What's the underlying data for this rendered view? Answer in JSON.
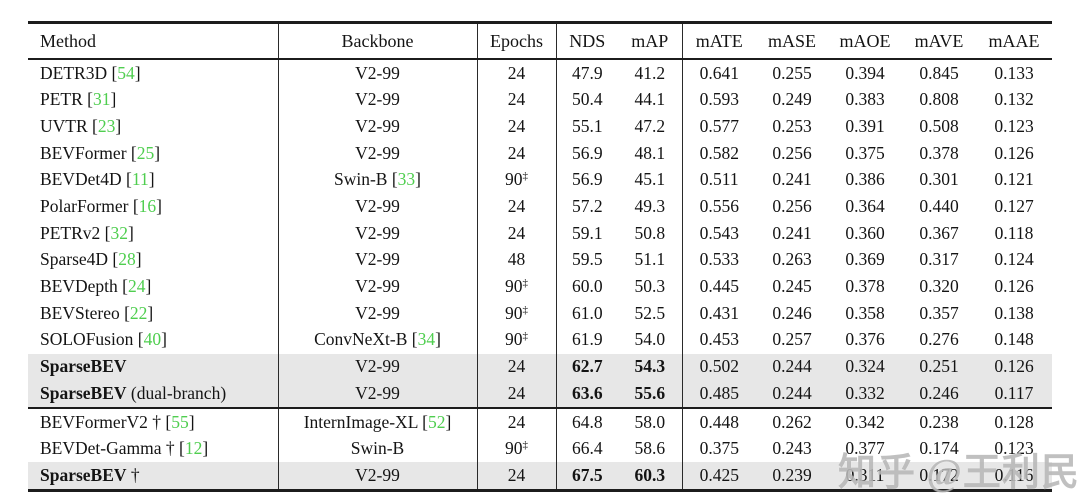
{
  "watermark": "知乎 @王利民",
  "colors": {
    "citation_green": "#4fce4f",
    "highlight_gray": "#e7e7e7",
    "rule_black": "#1c1c1c"
  },
  "table": {
    "columns": [
      "Method",
      "Backbone",
      "Epochs",
      "NDS",
      "mAP",
      "mATE",
      "mASE",
      "mAOE",
      "mAVE",
      "mAAE"
    ],
    "groups": [
      {
        "rows": [
          {
            "name": "DETR3D",
            "bold": false,
            "suffix": "",
            "dagger": false,
            "cite": "54",
            "backbone": "V2-99",
            "backbone_cite": "",
            "epochs": "24",
            "ddagger": false,
            "metrics": [
              "47.9",
              "41.2",
              "0.641",
              "0.255",
              "0.394",
              "0.845",
              "0.133"
            ],
            "bold_metrics": false,
            "highlight": false
          },
          {
            "name": "PETR",
            "bold": false,
            "suffix": "",
            "dagger": false,
            "cite": "31",
            "backbone": "V2-99",
            "backbone_cite": "",
            "epochs": "24",
            "ddagger": false,
            "metrics": [
              "50.4",
              "44.1",
              "0.593",
              "0.249",
              "0.383",
              "0.808",
              "0.132"
            ],
            "bold_metrics": false,
            "highlight": false
          },
          {
            "name": "UVTR",
            "bold": false,
            "suffix": "",
            "dagger": false,
            "cite": "23",
            "backbone": "V2-99",
            "backbone_cite": "",
            "epochs": "24",
            "ddagger": false,
            "metrics": [
              "55.1",
              "47.2",
              "0.577",
              "0.253",
              "0.391",
              "0.508",
              "0.123"
            ],
            "bold_metrics": false,
            "highlight": false
          },
          {
            "name": "BEVFormer",
            "bold": false,
            "suffix": "",
            "dagger": false,
            "cite": "25",
            "backbone": "V2-99",
            "backbone_cite": "",
            "epochs": "24",
            "ddagger": false,
            "metrics": [
              "56.9",
              "48.1",
              "0.582",
              "0.256",
              "0.375",
              "0.378",
              "0.126"
            ],
            "bold_metrics": false,
            "highlight": false
          },
          {
            "name": "BEVDet4D",
            "bold": false,
            "suffix": "",
            "dagger": false,
            "cite": "11",
            "backbone": "Swin-B",
            "backbone_cite": "33",
            "epochs": "90",
            "ddagger": true,
            "metrics": [
              "56.9",
              "45.1",
              "0.511",
              "0.241",
              "0.386",
              "0.301",
              "0.121"
            ],
            "bold_metrics": false,
            "highlight": false
          },
          {
            "name": "PolarFormer",
            "bold": false,
            "suffix": "",
            "dagger": false,
            "cite": "16",
            "backbone": "V2-99",
            "backbone_cite": "",
            "epochs": "24",
            "ddagger": false,
            "metrics": [
              "57.2",
              "49.3",
              "0.556",
              "0.256",
              "0.364",
              "0.440",
              "0.127"
            ],
            "bold_metrics": false,
            "highlight": false
          },
          {
            "name": "PETRv2",
            "bold": false,
            "suffix": "",
            "dagger": false,
            "cite": "32",
            "backbone": "V2-99",
            "backbone_cite": "",
            "epochs": "24",
            "ddagger": false,
            "metrics": [
              "59.1",
              "50.8",
              "0.543",
              "0.241",
              "0.360",
              "0.367",
              "0.118"
            ],
            "bold_metrics": false,
            "highlight": false
          },
          {
            "name": "Sparse4D",
            "bold": false,
            "suffix": "",
            "dagger": false,
            "cite": "28",
            "backbone": "V2-99",
            "backbone_cite": "",
            "epochs": "48",
            "ddagger": false,
            "metrics": [
              "59.5",
              "51.1",
              "0.533",
              "0.263",
              "0.369",
              "0.317",
              "0.124"
            ],
            "bold_metrics": false,
            "highlight": false
          },
          {
            "name": "BEVDepth",
            "bold": false,
            "suffix": "",
            "dagger": false,
            "cite": "24",
            "backbone": "V2-99",
            "backbone_cite": "",
            "epochs": "90",
            "ddagger": true,
            "metrics": [
              "60.0",
              "50.3",
              "0.445",
              "0.245",
              "0.378",
              "0.320",
              "0.126"
            ],
            "bold_metrics": false,
            "highlight": false
          },
          {
            "name": "BEVStereo",
            "bold": false,
            "suffix": "",
            "dagger": false,
            "cite": "22",
            "backbone": "V2-99",
            "backbone_cite": "",
            "epochs": "90",
            "ddagger": true,
            "metrics": [
              "61.0",
              "52.5",
              "0.431",
              "0.246",
              "0.358",
              "0.357",
              "0.138"
            ],
            "bold_metrics": false,
            "highlight": false
          },
          {
            "name": "SOLOFusion",
            "bold": false,
            "suffix": "",
            "dagger": false,
            "cite": "40",
            "backbone": "ConvNeXt-B",
            "backbone_cite": "34",
            "epochs": "90",
            "ddagger": true,
            "metrics": [
              "61.9",
              "54.0",
              "0.453",
              "0.257",
              "0.376",
              "0.276",
              "0.148"
            ],
            "bold_metrics": false,
            "highlight": false
          },
          {
            "name": "SparseBEV",
            "bold": true,
            "suffix": "",
            "dagger": false,
            "cite": "",
            "backbone": "V2-99",
            "backbone_cite": "",
            "epochs": "24",
            "ddagger": false,
            "metrics": [
              "62.7",
              "54.3",
              "0.502",
              "0.244",
              "0.324",
              "0.251",
              "0.126"
            ],
            "bold_metrics": true,
            "highlight": true
          },
          {
            "name": "SparseBEV",
            "bold": true,
            "suffix": " (dual-branch)",
            "dagger": false,
            "cite": "",
            "backbone": "V2-99",
            "backbone_cite": "",
            "epochs": "24",
            "ddagger": false,
            "metrics": [
              "63.6",
              "55.6",
              "0.485",
              "0.244",
              "0.332",
              "0.246",
              "0.117"
            ],
            "bold_metrics": true,
            "highlight": true
          }
        ]
      },
      {
        "rows": [
          {
            "name": "BEVFormerV2",
            "bold": false,
            "suffix": "",
            "dagger": true,
            "cite": "55",
            "backbone": "InternImage-XL",
            "backbone_cite": "52",
            "epochs": "24",
            "ddagger": false,
            "metrics": [
              "64.8",
              "58.0",
              "0.448",
              "0.262",
              "0.342",
              "0.238",
              "0.128"
            ],
            "bold_metrics": false,
            "highlight": false
          },
          {
            "name": "BEVDet-Gamma",
            "bold": false,
            "suffix": "",
            "dagger": true,
            "cite": "12",
            "backbone": "Swin-B",
            "backbone_cite": "",
            "epochs": "90",
            "ddagger": true,
            "metrics": [
              "66.4",
              "58.6",
              "0.375",
              "0.243",
              "0.377",
              "0.174",
              "0.123"
            ],
            "bold_metrics": false,
            "highlight": false
          },
          {
            "name": "SparseBEV",
            "bold": true,
            "suffix": "",
            "dagger": true,
            "cite": "",
            "backbone": "V2-99",
            "backbone_cite": "",
            "epochs": "24",
            "ddagger": false,
            "metrics": [
              "67.5",
              "60.3",
              "0.425",
              "0.239",
              "0.311",
              "0.172",
              "0.116"
            ],
            "bold_metrics": true,
            "highlight": true
          }
        ]
      }
    ]
  }
}
